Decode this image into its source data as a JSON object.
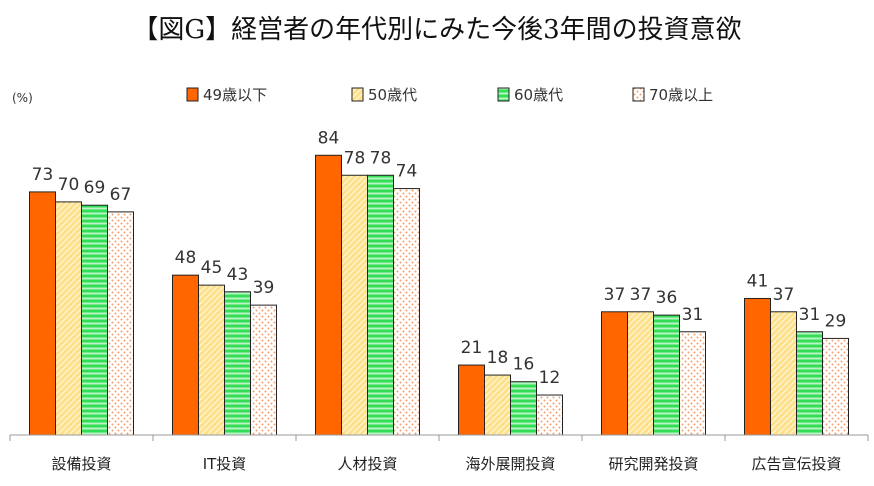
{
  "chart_data": {
    "type": "bar",
    "title": "【図G】経営者の年代別にみた今後3年間の投資意欲",
    "unit": "(%)",
    "xlabel": "",
    "ylabel": "",
    "ylim": [
      0,
      100
    ],
    "grid": false,
    "legend_position": "top",
    "categories": [
      "設備投資",
      "IT投資",
      "人材投資",
      "海外展開投資",
      "研究開発投資",
      "広告宣伝投資"
    ],
    "series": [
      {
        "name": "49歳以下",
        "values": [
          73,
          48,
          84,
          21,
          37,
          41
        ],
        "color": "#FF6600",
        "pattern": "solid"
      },
      {
        "name": "50歳代",
        "values": [
          70,
          45,
          78,
          18,
          37,
          37
        ],
        "color": "#FFE08A",
        "pattern": "diagonal"
      },
      {
        "name": "60歳代",
        "values": [
          69,
          43,
          78,
          16,
          36,
          31
        ],
        "color": "#33DD55",
        "pattern": "horizontal"
      },
      {
        "name": "70歳以上",
        "values": [
          67,
          39,
          74,
          12,
          31,
          29
        ],
        "color": "#F8C8A8",
        "pattern": "dots"
      }
    ]
  }
}
